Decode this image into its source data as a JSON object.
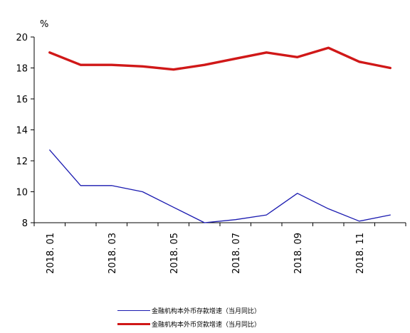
{
  "chart_data": {
    "type": "line",
    "ylabel": "%",
    "ylim": [
      8,
      20
    ],
    "yticks": [
      "8",
      "10",
      "12",
      "14",
      "16",
      "18",
      "20"
    ],
    "categories": [
      "2018.01",
      "2018.02",
      "2018.03",
      "2018.04",
      "2018.05",
      "2018.06",
      "2018.07",
      "2018.08",
      "2018.09",
      "2018.10",
      "2018.11",
      "2018.12"
    ],
    "xtick_labels": [
      "2018. 01",
      "2018. 03",
      "2018. 05",
      "2018. 07",
      "2018. 09",
      "2018. 11"
    ],
    "series": [
      {
        "name": "金融机构本外币存款增速（当月同比）",
        "color": "#1a1ab0",
        "values": [
          12.7,
          10.4,
          10.4,
          10.0,
          9.0,
          8.0,
          8.2,
          8.5,
          9.9,
          8.9,
          8.1,
          8.5
        ]
      },
      {
        "name": "金融机构本外币贷款增速（当月同比）",
        "color": "#d01818",
        "values": [
          19.0,
          18.2,
          18.2,
          18.1,
          17.9,
          18.2,
          18.6,
          19.0,
          18.7,
          19.3,
          18.4,
          18.0
        ]
      }
    ],
    "grid": false,
    "legend_position": "bottom"
  }
}
